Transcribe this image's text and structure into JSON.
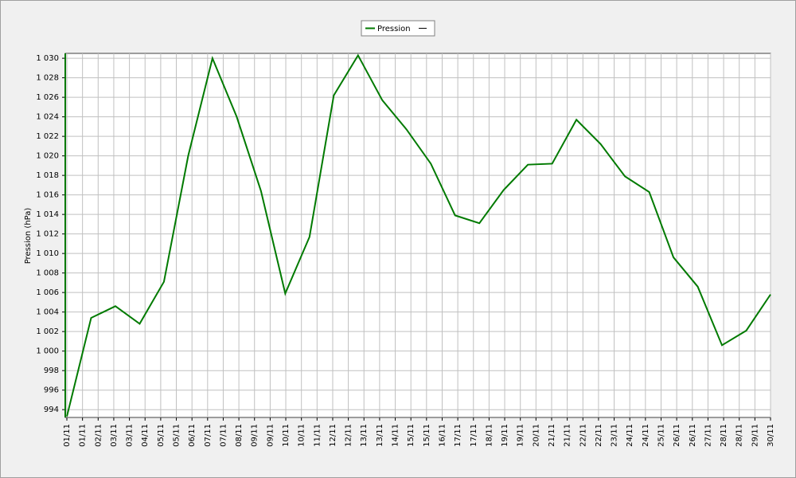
{
  "chart_data": {
    "type": "line",
    "y_label": "Pression (hPa)",
    "legend_position": "top",
    "x": [
      1,
      2,
      3,
      4,
      5,
      6,
      7,
      8,
      9,
      10,
      11,
      12,
      13,
      14,
      15,
      16,
      17,
      18,
      19,
      20,
      21,
      22,
      23,
      24,
      25,
      26,
      27,
      28,
      29,
      30
    ],
    "series": [
      {
        "name": "Pression",
        "color": "#007a00",
        "values": [
          993.3,
          1003.4,
          1004.6,
          1002.8,
          1007.1,
          1020.0,
          1030.0,
          1024.0,
          1016.4,
          1005.9,
          1011.7,
          1026.2,
          1030.3,
          1025.7,
          1022.7,
          1019.2,
          1013.9,
          1013.1,
          1016.5,
          1019.1,
          1019.2,
          1023.7,
          1021.2,
          1017.9,
          1016.3,
          1009.6,
          1006.6,
          1000.6,
          1002.1,
          1005.8
        ]
      }
    ],
    "xlim": [
      0.934,
      30
    ],
    "xticks": [
      {
        "value": 1,
        "label": "01/11"
      },
      {
        "value": 1.644,
        "label": "01/11"
      },
      {
        "value": 2.289,
        "label": "02/11"
      },
      {
        "value": 2.933,
        "label": "03/11"
      },
      {
        "value": 3.578,
        "label": "03/11"
      },
      {
        "value": 4.222,
        "label": "04/11"
      },
      {
        "value": 4.867,
        "label": "05/11"
      },
      {
        "value": 5.511,
        "label": "05/11"
      },
      {
        "value": 6.156,
        "label": "06/11"
      },
      {
        "value": 6.8,
        "label": "07/11"
      },
      {
        "value": 7.444,
        "label": "07/11"
      },
      {
        "value": 8.089,
        "label": "08/11"
      },
      {
        "value": 8.733,
        "label": "09/11"
      },
      {
        "value": 9.378,
        "label": "09/11"
      },
      {
        "value": 10.022,
        "label": "10/11"
      },
      {
        "value": 10.667,
        "label": "10/11"
      },
      {
        "value": 11.311,
        "label": "11/11"
      },
      {
        "value": 11.956,
        "label": "12/11"
      },
      {
        "value": 12.6,
        "label": "12/11"
      },
      {
        "value": 13.244,
        "label": "13/11"
      },
      {
        "value": 13.889,
        "label": "13/11"
      },
      {
        "value": 14.533,
        "label": "14/11"
      },
      {
        "value": 15.178,
        "label": "15/11"
      },
      {
        "value": 15.822,
        "label": "15/11"
      },
      {
        "value": 16.467,
        "label": "16/11"
      },
      {
        "value": 17.111,
        "label": "17/11"
      },
      {
        "value": 17.756,
        "label": "17/11"
      },
      {
        "value": 18.4,
        "label": "18/11"
      },
      {
        "value": 19.044,
        "label": "19/11"
      },
      {
        "value": 19.689,
        "label": "19/11"
      },
      {
        "value": 20.333,
        "label": "20/11"
      },
      {
        "value": 20.978,
        "label": "21/11"
      },
      {
        "value": 21.622,
        "label": "21/11"
      },
      {
        "value": 22.267,
        "label": "22/11"
      },
      {
        "value": 22.911,
        "label": "22/11"
      },
      {
        "value": 23.556,
        "label": "23/11"
      },
      {
        "value": 24.2,
        "label": "24/11"
      },
      {
        "value": 24.844,
        "label": "24/11"
      },
      {
        "value": 25.489,
        "label": "25/11"
      },
      {
        "value": 26.133,
        "label": "26/11"
      },
      {
        "value": 26.778,
        "label": "26/11"
      },
      {
        "value": 27.422,
        "label": "27/11"
      },
      {
        "value": 28.067,
        "label": "28/11"
      },
      {
        "value": 28.711,
        "label": "28/11"
      },
      {
        "value": 29.356,
        "label": "29/11"
      },
      {
        "value": 30,
        "label": "30/11"
      }
    ],
    "ylim": [
      993.2,
      1030.5
    ],
    "yticks": [
      {
        "value": 994,
        "label": "994"
      },
      {
        "value": 996,
        "label": "996"
      },
      {
        "value": 998,
        "label": "998"
      },
      {
        "value": 1000,
        "label": "1 000"
      },
      {
        "value": 1002,
        "label": "1 002"
      },
      {
        "value": 1004,
        "label": "1 004"
      },
      {
        "value": 1006,
        "label": "1 006"
      },
      {
        "value": 1008,
        "label": "1 008"
      },
      {
        "value": 1010,
        "label": "1 010"
      },
      {
        "value": 1012,
        "label": "1 012"
      },
      {
        "value": 1014,
        "label": "1 014"
      },
      {
        "value": 1016,
        "label": "1 016"
      },
      {
        "value": 1018,
        "label": "1 018"
      },
      {
        "value": 1020,
        "label": "1 020"
      },
      {
        "value": 1022,
        "label": "1 022"
      },
      {
        "value": 1024,
        "label": "1 024"
      },
      {
        "value": 1026,
        "label": "1 026"
      },
      {
        "value": 1028,
        "label": "1 028"
      },
      {
        "value": 1030,
        "label": "1 030"
      }
    ],
    "grid": true
  }
}
